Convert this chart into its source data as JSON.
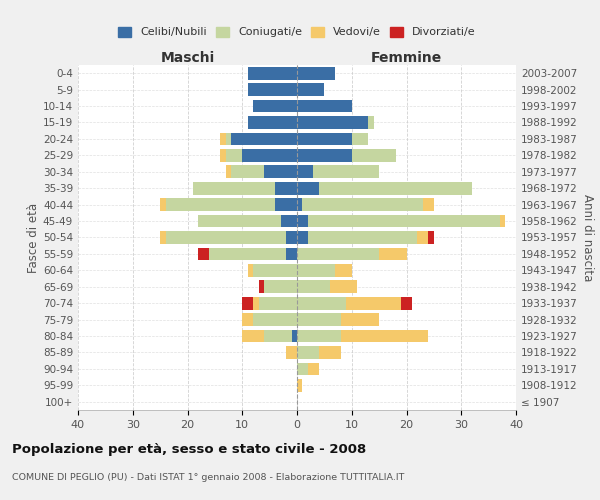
{
  "age_groups": [
    "0-4",
    "5-9",
    "10-14",
    "15-19",
    "20-24",
    "25-29",
    "30-34",
    "35-39",
    "40-44",
    "45-49",
    "50-54",
    "55-59",
    "60-64",
    "65-69",
    "70-74",
    "75-79",
    "80-84",
    "85-89",
    "90-94",
    "95-99",
    "100+"
  ],
  "birth_years": [
    "2003-2007",
    "1998-2002",
    "1993-1997",
    "1988-1992",
    "1983-1987",
    "1978-1982",
    "1973-1977",
    "1968-1972",
    "1963-1967",
    "1958-1962",
    "1953-1957",
    "1948-1952",
    "1943-1947",
    "1938-1942",
    "1933-1937",
    "1928-1932",
    "1923-1927",
    "1918-1922",
    "1913-1917",
    "1908-1912",
    "≤ 1907"
  ],
  "colors": {
    "celibi": "#3a6ea5",
    "coniugati": "#c5d6a0",
    "vedovi": "#f5c96a",
    "divorziati": "#cc2222"
  },
  "maschi": {
    "celibi": [
      9,
      9,
      8,
      9,
      12,
      10,
      6,
      4,
      4,
      3,
      2,
      2,
      0,
      0,
      0,
      0,
      1,
      0,
      0,
      0,
      0
    ],
    "coniugati": [
      0,
      0,
      0,
      0,
      1,
      3,
      6,
      15,
      20,
      15,
      22,
      14,
      8,
      6,
      7,
      8,
      5,
      0,
      0,
      0,
      0
    ],
    "vedovi": [
      0,
      0,
      0,
      0,
      1,
      1,
      1,
      0,
      1,
      0,
      1,
      0,
      1,
      0,
      1,
      2,
      4,
      2,
      0,
      0,
      0
    ],
    "divorziati": [
      0,
      0,
      0,
      0,
      0,
      0,
      0,
      0,
      0,
      0,
      0,
      2,
      0,
      1,
      2,
      0,
      0,
      0,
      0,
      0,
      0
    ]
  },
  "femmine": {
    "celibi": [
      7,
      5,
      10,
      13,
      10,
      10,
      3,
      4,
      1,
      2,
      2,
      0,
      0,
      0,
      0,
      0,
      0,
      0,
      0,
      0,
      0
    ],
    "coniugati": [
      0,
      0,
      0,
      1,
      3,
      8,
      12,
      28,
      22,
      35,
      20,
      15,
      7,
      6,
      9,
      8,
      8,
      4,
      2,
      0,
      0
    ],
    "vedovi": [
      0,
      0,
      0,
      0,
      0,
      0,
      0,
      0,
      2,
      1,
      2,
      5,
      3,
      5,
      10,
      7,
      16,
      4,
      2,
      1,
      0
    ],
    "divorziati": [
      0,
      0,
      0,
      0,
      0,
      0,
      0,
      0,
      0,
      0,
      1,
      0,
      0,
      0,
      2,
      0,
      0,
      0,
      0,
      0,
      0
    ]
  },
  "xlim": 40,
  "title": "Popolazione per età, sesso e stato civile - 2008",
  "subtitle": "COMUNE DI PEGLIO (PU) - Dati ISTAT 1° gennaio 2008 - Elaborazione TUTTITALIA.IT",
  "ylabel_left": "Fasce di età",
  "ylabel_right": "Anni di nascita",
  "xlabel_left": "Maschi",
  "xlabel_right": "Femmine",
  "bg_color": "#f0f0f0",
  "plot_bg": "#ffffff",
  "grid_color": "#cccccc"
}
